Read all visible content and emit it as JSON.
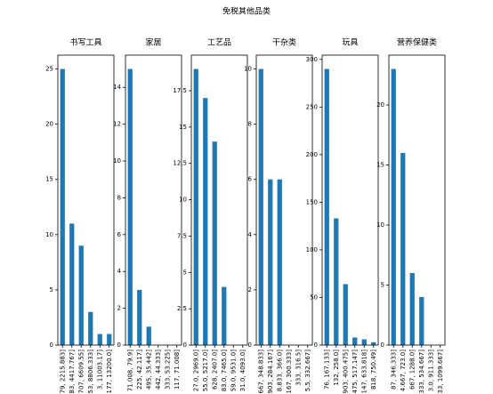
{
  "title": "免税其他品类",
  "chart_data": [
    {
      "type": "bar",
      "title": "书写工具",
      "color": "#1f77b4",
      "categories": [
        "79, 2215.883]",
        "83, 4417.767]",
        "707, 6609.55]",
        "53, 8806.333]",
        "3, 11003.17]",
        "177, 13200.0]"
      ],
      "values": [
        25,
        11,
        9,
        3,
        1,
        1
      ],
      "ylim": [
        0,
        26.25
      ],
      "yticks": [
        0,
        5,
        10,
        15,
        20,
        25
      ]
    },
    {
      "type": "bar",
      "title": "家居",
      "color": "#1f77b4",
      "categories": [
        "71.008, 79.9]",
        "225, 42.117]",
        "495, 35.442]",
        "442, 44.333]",
        "333, 53.225]",
        "117, 71.008]"
      ],
      "values": [
        15,
        3,
        1,
        0,
        0,
        0
      ],
      "ylim": [
        0,
        15.75
      ],
      "yticks": [
        0,
        2,
        4,
        6,
        8,
        10,
        12,
        14
      ]
    },
    {
      "type": "bar",
      "title": "工艺品",
      "color": "#1f77b4",
      "categories": [
        "27.0, 2969.0]",
        "55.0, 5217.0]",
        "628, 2407.0]",
        "83.0, 7465.0]",
        "59.0, 9531.0]",
        "31.0, 4093.0]"
      ],
      "values": [
        19,
        17,
        14,
        4,
        0,
        0
      ],
      "ylim": [
        0,
        19.95
      ],
      "yticks": [
        0,
        2.5,
        5,
        7.5,
        10,
        12.5,
        15,
        17.5
      ]
    },
    {
      "type": "bar",
      "title": "干杂类",
      "color": "#1f77b4",
      "categories": [
        "667, 348.833]",
        "903, 284.167]",
        "8.833, 366.0]",
        "167, 300.333]",
        "333, 316.5]",
        "5.5, 332.667]"
      ],
      "values": [
        10,
        6,
        6,
        0,
        0,
        0
      ],
      "ylim": [
        0,
        10.5
      ],
      "yticks": [
        0,
        2,
        4,
        6,
        8,
        10
      ]
    },
    {
      "type": "bar",
      "title": "玩具",
      "color": "#1f77b4",
      "categories": [
        "76, 167.133]",
        "132, 258.0]",
        "903, 400.475]",
        "475, 517.147]",
        "147, 633.818]",
        "818, 750.49]"
      ],
      "values": [
        290,
        133,
        64,
        8,
        6,
        3
      ],
      "ylim": [
        0,
        304.5
      ],
      "yticks": [
        0,
        50,
        100,
        150,
        200,
        250,
        300
      ]
    },
    {
      "type": "bar",
      "title": "营养保健类",
      "color": "#1f77b4",
      "categories": [
        "87, 346.333]",
        "4.667, 723.0]",
        "667, 1288.0]",
        "333, 534.667]",
        "3.0, 911.333]",
        "33, 1099.667]"
      ],
      "values": [
        23,
        16,
        6,
        4,
        0,
        0
      ],
      "ylim": [
        0,
        24.15
      ],
      "yticks": [
        0,
        5,
        10,
        15,
        20
      ]
    }
  ]
}
